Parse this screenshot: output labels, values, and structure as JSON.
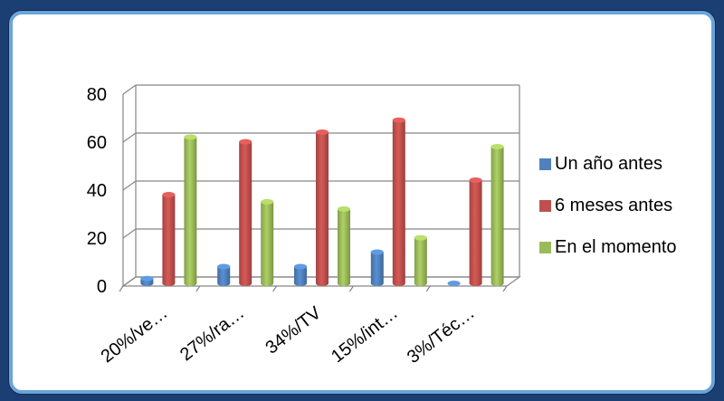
{
  "chart_data": {
    "type": "bar",
    "categories": [
      "20%/ve…",
      "27%/ra…",
      "34%/TV",
      "15%/int…",
      "3%/Téc…"
    ],
    "series": [
      {
        "name": "Un año antes",
        "color": "#4f81bd",
        "values": [
          2,
          7,
          7,
          13,
          0
        ]
      },
      {
        "name": "6 meses antes",
        "color": "#c0504d",
        "values": [
          37,
          59,
          63,
          68,
          43
        ]
      },
      {
        "name": "En el momento",
        "color": "#9bbb59",
        "values": [
          61,
          34,
          31,
          19,
          57
        ]
      }
    ],
    "ylim": [
      0,
      80
    ],
    "yticks": [
      0,
      20,
      40,
      60,
      80
    ],
    "grid": true,
    "legend": "right",
    "title": "",
    "xlabel": "",
    "ylabel": ""
  }
}
